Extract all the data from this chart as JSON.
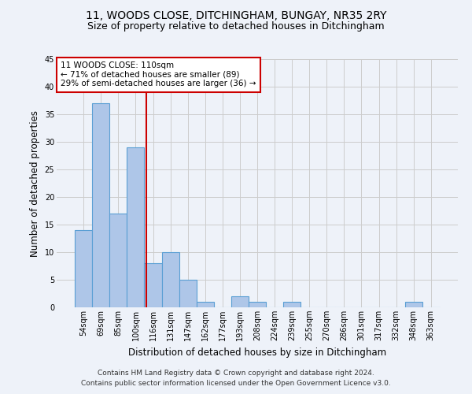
{
  "title_line1": "11, WOODS CLOSE, DITCHINGHAM, BUNGAY, NR35 2RY",
  "title_line2": "Size of property relative to detached houses in Ditchingham",
  "xlabel": "Distribution of detached houses by size in Ditchingham",
  "ylabel": "Number of detached properties",
  "categories": [
    "54sqm",
    "69sqm",
    "85sqm",
    "100sqm",
    "116sqm",
    "131sqm",
    "147sqm",
    "162sqm",
    "177sqm",
    "193sqm",
    "208sqm",
    "224sqm",
    "239sqm",
    "255sqm",
    "270sqm",
    "286sqm",
    "301sqm",
    "317sqm",
    "332sqm",
    "348sqm",
    "363sqm"
  ],
  "values": [
    14,
    37,
    17,
    29,
    8,
    10,
    5,
    1,
    0,
    2,
    1,
    0,
    1,
    0,
    0,
    0,
    0,
    0,
    0,
    1,
    0
  ],
  "bar_color": "#aec6e8",
  "bar_edge_color": "#5a9fd4",
  "bar_linewidth": 0.8,
  "vline_color": "#cc0000",
  "ylim": [
    0,
    45
  ],
  "yticks": [
    0,
    5,
    10,
    15,
    20,
    25,
    30,
    35,
    40,
    45
  ],
  "annotation_text": "11 WOODS CLOSE: 110sqm\n← 71% of detached houses are smaller (89)\n29% of semi-detached houses are larger (36) →",
  "annotation_box_color": "white",
  "annotation_box_edge": "#cc0000",
  "footnote1": "Contains HM Land Registry data © Crown copyright and database right 2024.",
  "footnote2": "Contains public sector information licensed under the Open Government Licence v3.0.",
  "background_color": "#eef2f9",
  "grid_color": "#cccccc",
  "title_fontsize": 10,
  "subtitle_fontsize": 9,
  "label_fontsize": 8.5,
  "tick_fontsize": 7,
  "footnote_fontsize": 6.5,
  "annotation_fontsize": 7.5
}
